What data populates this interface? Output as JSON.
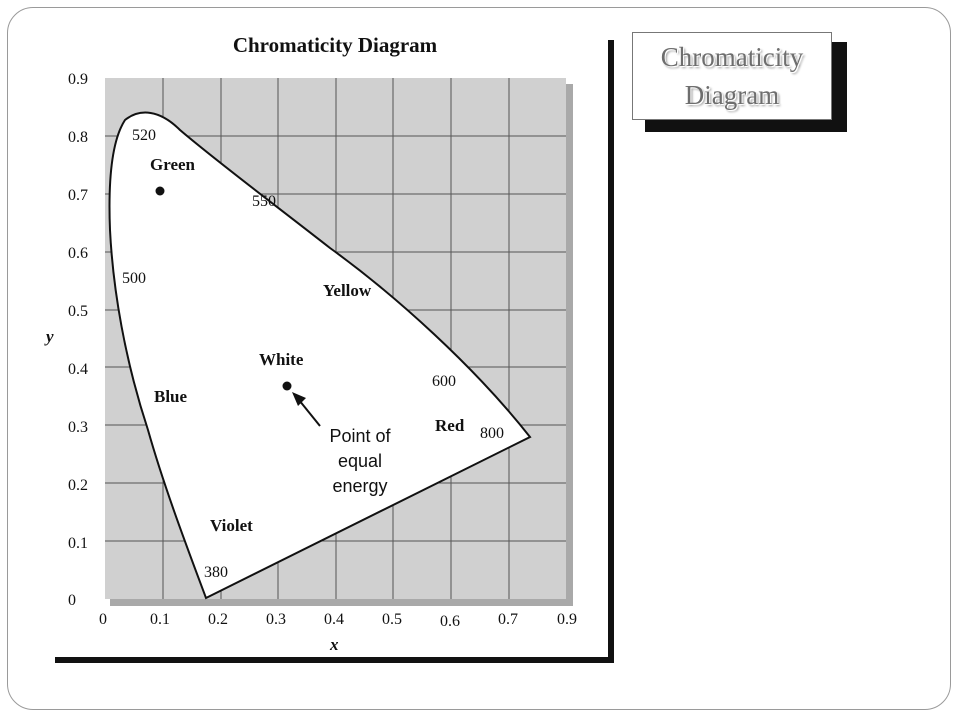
{
  "slide": {
    "callout_title": "Chromaticity\nDiagram"
  },
  "figure": {
    "title": "Chromaticity Diagram",
    "x_axis_label": "x",
    "y_axis_label": "y",
    "x_ticks": [
      "0",
      "0.1",
      "0.2",
      "0.3",
      "0.4",
      "0.5",
      "0.6",
      "0.7",
      "0.9"
    ],
    "y_ticks": [
      "0",
      "0.1",
      "0.2",
      "0.3",
      "0.4",
      "0.5",
      "0.6",
      "0.7",
      "0.8",
      "0.9"
    ],
    "wavelength_labels": [
      "520",
      "550",
      "500",
      "600",
      "800",
      "380"
    ],
    "region_labels": {
      "green": "Green",
      "yellow": "Yellow",
      "white": "White",
      "blue": "Blue",
      "red": "Red",
      "violet": "Violet"
    },
    "annotation": [
      "Point of",
      "equal",
      "energy"
    ],
    "colors": {
      "plot_background": "#d0d0d0",
      "grid": "#555555",
      "locus_fill": "#ffffff"
    }
  }
}
